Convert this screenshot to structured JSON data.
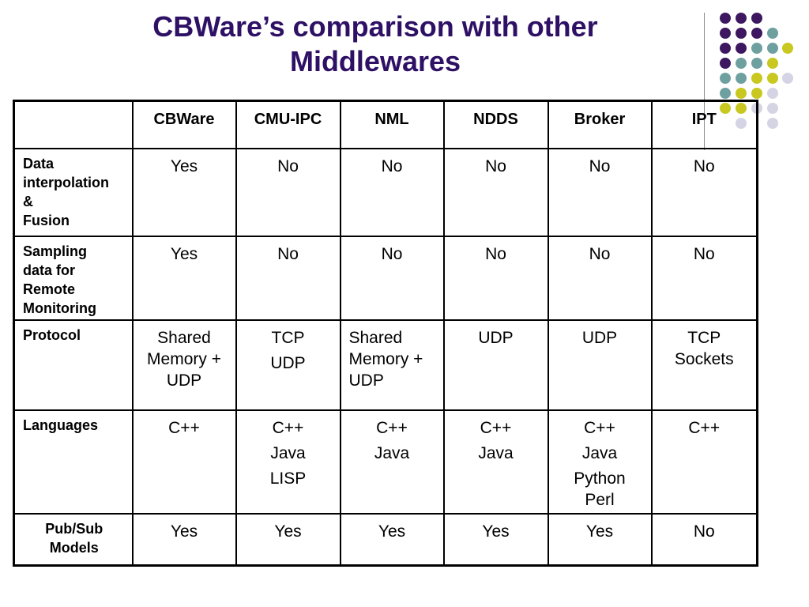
{
  "slide": {
    "title_line1": "CBWare’s comparison with other",
    "title_line2": "Middlewares"
  },
  "decoration": {
    "dot_colors": {
      "purple": "#3d1760",
      "teal": "#6fa0a0",
      "yellow": "#c8c820",
      "lavender": "#d4d4e4"
    }
  },
  "table": {
    "headers": [
      "",
      "CBWare",
      "CMU-IPC",
      "NML",
      "NDDS",
      "Broker",
      "IPT"
    ],
    "rows": [
      {
        "label": [
          "Data",
          "interpolation",
          "&",
          "Fusion"
        ],
        "cells": [
          [
            "Yes"
          ],
          [
            "No"
          ],
          [
            "No"
          ],
          [
            "No"
          ],
          [
            "No"
          ],
          [
            "No"
          ]
        ]
      },
      {
        "label": [
          "Sampling",
          "data for",
          "Remote",
          "Monitoring"
        ],
        "cells": [
          [
            "Yes"
          ],
          [
            "No"
          ],
          [
            "No"
          ],
          [
            "No"
          ],
          [
            "No"
          ],
          [
            "No"
          ]
        ]
      },
      {
        "label": [
          "Protocol"
        ],
        "cells": [
          [
            "Shared",
            "Memory +",
            "UDP"
          ],
          [
            "TCP",
            "UDP"
          ],
          [
            "Shared",
            "Memory +",
            "UDP"
          ],
          [
            "UDP"
          ],
          [
            "UDP"
          ],
          [
            "TCP",
            "Sockets"
          ]
        ]
      },
      {
        "label": [
          "Languages"
        ],
        "cells": [
          [
            "C++"
          ],
          [
            "C++",
            "Java",
            "LISP"
          ],
          [
            "C++",
            "Java"
          ],
          [
            "C++",
            "Java"
          ],
          [
            "C++",
            "Java",
            "Python",
            "Perl"
          ],
          [
            "C++"
          ]
        ]
      },
      {
        "label": [
          "Pub/Sub",
          "Models"
        ],
        "cells": [
          [
            "Yes"
          ],
          [
            "Yes"
          ],
          [
            "Yes"
          ],
          [
            "Yes"
          ],
          [
            "Yes"
          ],
          [
            "No"
          ]
        ]
      }
    ]
  }
}
